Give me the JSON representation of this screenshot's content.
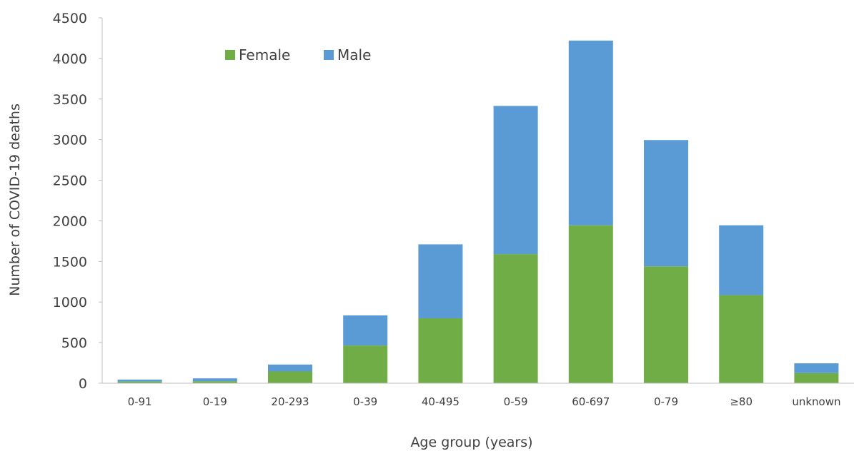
{
  "chart_data": {
    "type": "bar",
    "stacked": true,
    "categories": [
      "0-91",
      "0-19",
      "20-293",
      "0-39",
      "40-495",
      "0-59",
      "60-697",
      "0-79",
      "≥80",
      "unknown"
    ],
    "series": [
      {
        "name": "Female",
        "color": "#70ad47",
        "values": [
          20,
          25,
          145,
          465,
          800,
          1590,
          1945,
          1440,
          1085,
          125
        ]
      },
      {
        "name": "Male",
        "color": "#5b9bd5",
        "values": [
          25,
          35,
          85,
          370,
          910,
          1825,
          2275,
          1555,
          860,
          120
        ]
      }
    ],
    "title": "",
    "xlabel": "Age group (years)",
    "ylabel": "Number of COVID-19 deaths",
    "ylim": [
      0,
      4500
    ],
    "yticks": [
      0,
      500,
      1000,
      1500,
      2000,
      2500,
      3000,
      3500,
      4000,
      4500
    ],
    "grid": false,
    "legend": "top-left"
  }
}
